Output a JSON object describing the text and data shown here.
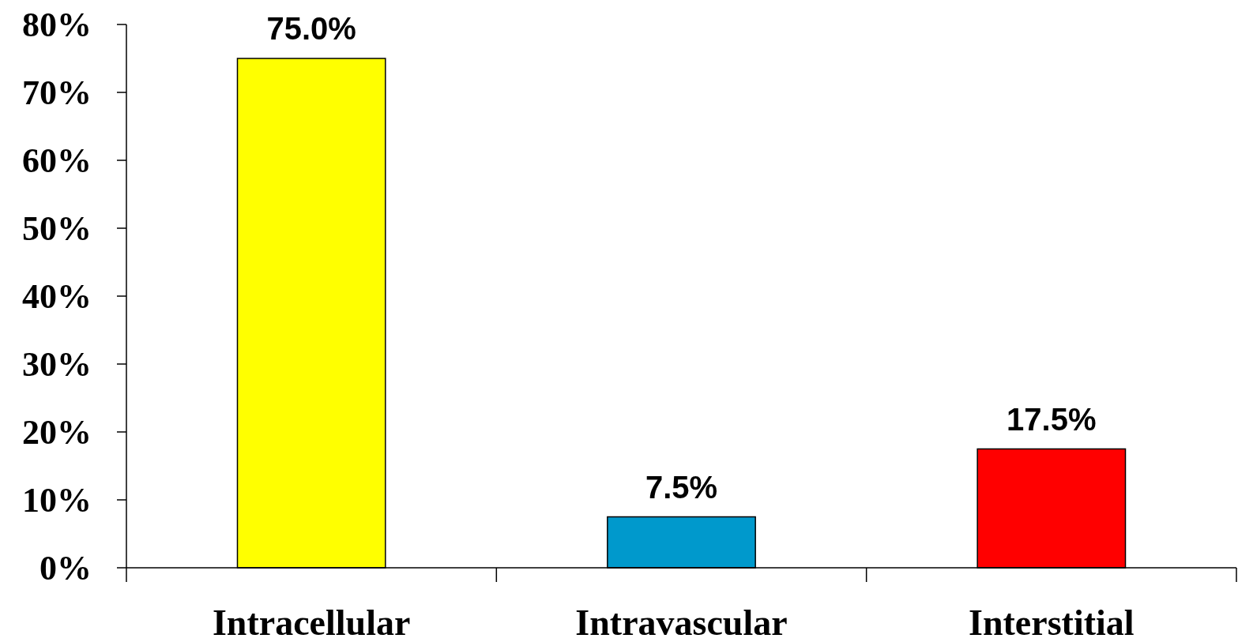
{
  "chart_data": {
    "type": "bar",
    "categories": [
      "Intracellular",
      "Intravascular",
      "Interstitial"
    ],
    "values": [
      75.0,
      7.5,
      17.5
    ],
    "colors": [
      "#ffff00",
      "#0099cc",
      "#ff0000"
    ],
    "value_labels": [
      "75.0%",
      "7.5%",
      "17.5%"
    ],
    "ylim": [
      0,
      80
    ],
    "yticks": [
      {
        "value": 0,
        "label": "0%"
      },
      {
        "value": 10,
        "label": "10%"
      },
      {
        "value": 20,
        "label": "20%"
      },
      {
        "value": 30,
        "label": "30%"
      },
      {
        "value": 40,
        "label": "40%"
      },
      {
        "value": 50,
        "label": "50%"
      },
      {
        "value": 60,
        "label": "60%"
      },
      {
        "value": 70,
        "label": "70%"
      },
      {
        "value": 80,
        "label": "80%"
      }
    ],
    "grid": false
  }
}
